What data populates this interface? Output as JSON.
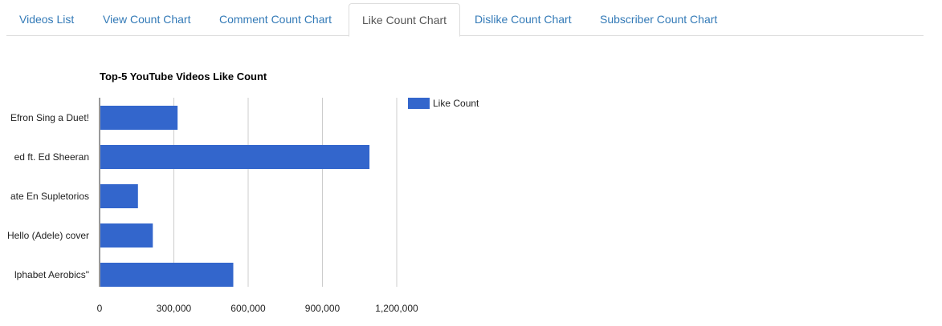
{
  "tabs": [
    {
      "label": "Videos List",
      "active": false
    },
    {
      "label": "View Count Chart",
      "active": false
    },
    {
      "label": "Comment Count Chart",
      "active": false
    },
    {
      "label": "Like Count Chart",
      "active": true
    },
    {
      "label": "Dislike Count Chart",
      "active": false
    },
    {
      "label": "Subscriber Count Chart",
      "active": false
    }
  ],
  "chart_data": {
    "type": "bar",
    "orientation": "horizontal",
    "title": "Top-5 YouTube Videos Like Count",
    "categories": [
      "Efron Sing a Duet!",
      "ed ft. Ed Sheeran",
      "ate En Supletorios",
      "Hello (Adele) cover",
      "lphabet Aerobics\""
    ],
    "series": [
      {
        "name": "Like Count",
        "values": [
          315000,
          1090000,
          155000,
          215000,
          540000
        ]
      }
    ],
    "xlim": [
      0,
      1200000
    ],
    "xticks": [
      "0",
      "300,000",
      "600,000",
      "900,000",
      "1,200,000"
    ],
    "grid": true,
    "legend_position": "right",
    "colors": {
      "bar": "#3366cc",
      "grid": "#cccccc",
      "axis": "#333333",
      "text": "#222222"
    }
  }
}
